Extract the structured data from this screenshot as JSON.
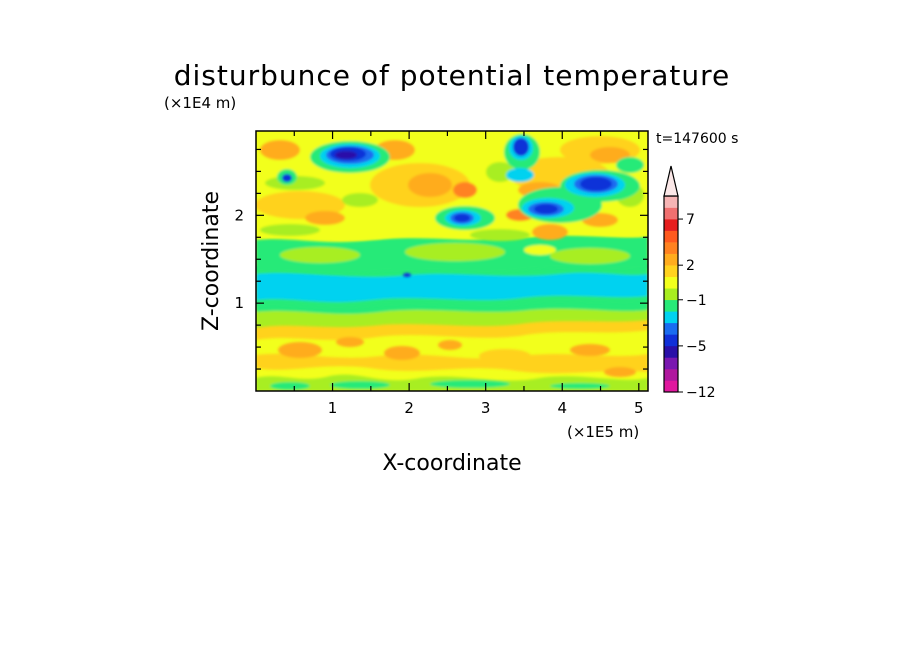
{
  "chart_data": {
    "type": "heatmap",
    "title": "disturbunce of potential temperature",
    "xlabel": "X-coordinate",
    "ylabel": "Z-coordinate",
    "x_unit": "(×1E5 m)",
    "y_unit": "(×1E4 m)",
    "time_label": "t=147600 s",
    "xlim": [
      0,
      5.12
    ],
    "ylim": [
      0,
      2.96
    ],
    "x_ticks": [
      "1",
      "2",
      "3",
      "4",
      "5"
    ],
    "y_ticks": [
      "1",
      "2"
    ],
    "colorbar": {
      "levels": [
        -12,
        -11,
        -9,
        -7,
        -5,
        -4,
        -3,
        -2,
        -1,
        0,
        1,
        2,
        3,
        4,
        5,
        7,
        9,
        12
      ],
      "colors": [
        "#e0189e",
        "#b0189e",
        "#7a18b0",
        "#2a10a8",
        "#1030d8",
        "#1a6cf0",
        "#00d2f0",
        "#28ea78",
        "#a8ee20",
        "#f2ff1c",
        "#ffd21e",
        "#ffac1e",
        "#ff8220",
        "#ff5a1e",
        "#e61e1e",
        "#f07070",
        "#f6b4b4"
      ],
      "tick_labels": [
        "-12",
        "-5",
        "-1",
        "2",
        "7"
      ],
      "extend_top": true
    },
    "bands": [
      {
        "z": [
          0.0,
          0.15
        ],
        "level": "0..1",
        "note": "yellow near surface"
      },
      {
        "z": [
          0.15,
          0.65
        ],
        "level": "1..3",
        "note": "yellow-orange field"
      },
      {
        "z": [
          0.65,
          0.9
        ],
        "level": "-1..0",
        "note": "green band"
      },
      {
        "z": [
          0.9,
          1.35
        ],
        "level": "-2..-1",
        "note": "cyan band"
      },
      {
        "z": [
          1.35,
          1.75
        ],
        "level": "-1..1",
        "note": "green/yellow"
      },
      {
        "z": [
          1.75,
          2.96
        ],
        "level": "-5..4",
        "note": "mixed, wave structures"
      }
    ],
    "extrema": [
      {
        "x": 1.17,
        "z": 2.68,
        "value": -5
      },
      {
        "x": 4.4,
        "z": 2.4,
        "value": -5
      },
      {
        "x": 3.85,
        "z": 2.08,
        "value": -5
      },
      {
        "x": 2.7,
        "z": 1.95,
        "value": -5
      },
      {
        "x": 3.47,
        "z": 2.78,
        "value": -5
      },
      {
        "x": 0.4,
        "z": 2.43,
        "value": -4
      }
    ]
  }
}
